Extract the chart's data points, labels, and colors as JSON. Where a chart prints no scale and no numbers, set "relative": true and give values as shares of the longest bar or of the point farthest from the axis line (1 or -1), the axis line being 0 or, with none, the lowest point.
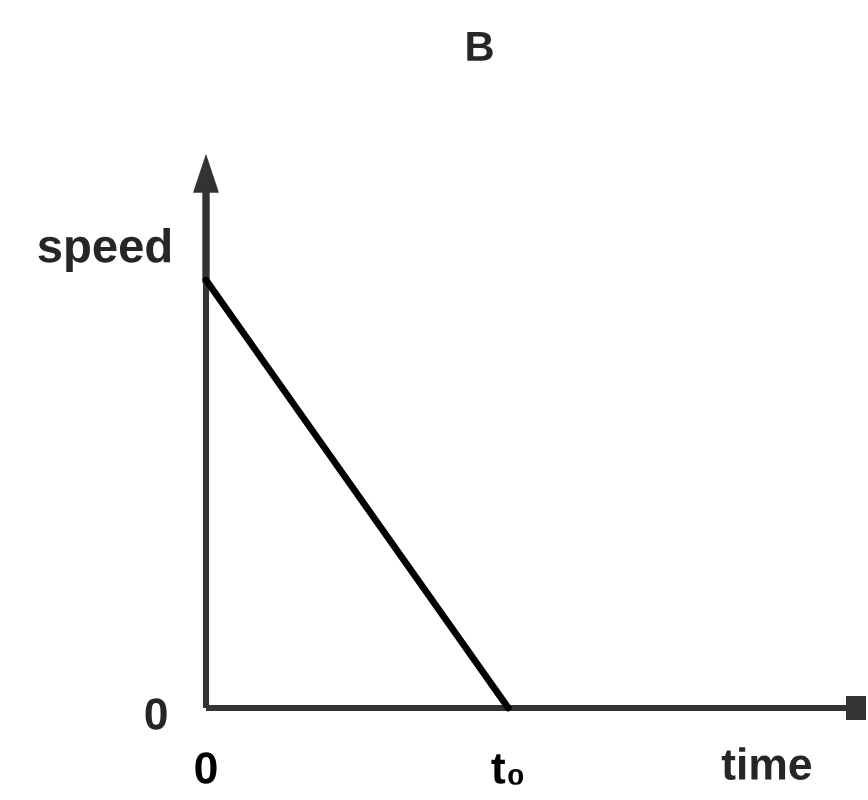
{
  "chart_data": {
    "type": "line",
    "title": "B",
    "xlabel": "time",
    "ylabel": "speed",
    "relative": true,
    "categories": [
      "0",
      "t₀"
    ],
    "values": [
      1,
      0
    ],
    "color": "#000000",
    "line_style": "solid",
    "annotations": [
      "0"
    ],
    "grid": false
  }
}
